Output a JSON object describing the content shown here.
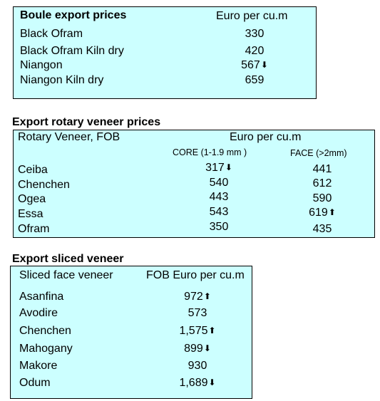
{
  "boule": {
    "title": "Boule export prices",
    "unit_header": "Euro per cu.m",
    "rows": [
      {
        "label": "Black Ofram",
        "value": "330",
        "trend": ""
      },
      {
        "label": "Black Ofram  Kiln dry",
        "value": "420",
        "trend": ""
      },
      {
        "label": "Niangon",
        "value": "567",
        "trend": "down"
      },
      {
        "label": "Niangon Kiln dry",
        "value": "659",
        "trend": ""
      }
    ]
  },
  "rotary": {
    "title": "Export rotary veneer prices",
    "col_header": "Rotary Veneer,  FOB",
    "unit_header": "Euro  per cu.m",
    "core_header": "CORE (1-1.9 mm )",
    "face_header": "FACE (>2mm)",
    "rows": [
      {
        "label": "Ceiba",
        "core": "317",
        "core_trend": "down",
        "face": "441",
        "face_trend": ""
      },
      {
        "label": "Chenchen",
        "core": "540",
        "core_trend": "",
        "face": "612",
        "face_trend": ""
      },
      {
        "label": "Ogea",
        "core": "443",
        "core_trend": "",
        "face": "590",
        "face_trend": ""
      },
      {
        "label": "Essa",
        "core": "543",
        "core_trend": "",
        "face": "619",
        "face_trend": "up"
      },
      {
        "label": "Ofram",
        "core": "350",
        "core_trend": "",
        "face": "435",
        "face_trend": ""
      }
    ]
  },
  "sliced": {
    "title": "Export sliced veneer",
    "col_header": "Sliced face veneer",
    "unit_header": "FOB Euro per cu.m",
    "rows": [
      {
        "label": "Asanfina",
        "value": "972",
        "trend": "up"
      },
      {
        "label": "Avodire",
        "value": "573",
        "trend": ""
      },
      {
        "label": "Chenchen",
        "value": "1,575",
        "trend": "up"
      },
      {
        "label": "Mahogany",
        "value": "899",
        "trend": "down"
      },
      {
        "label": "Makore",
        "value": "930",
        "trend": ""
      },
      {
        "label": "Odum",
        "value": "1,689",
        "trend": "down"
      }
    ]
  }
}
